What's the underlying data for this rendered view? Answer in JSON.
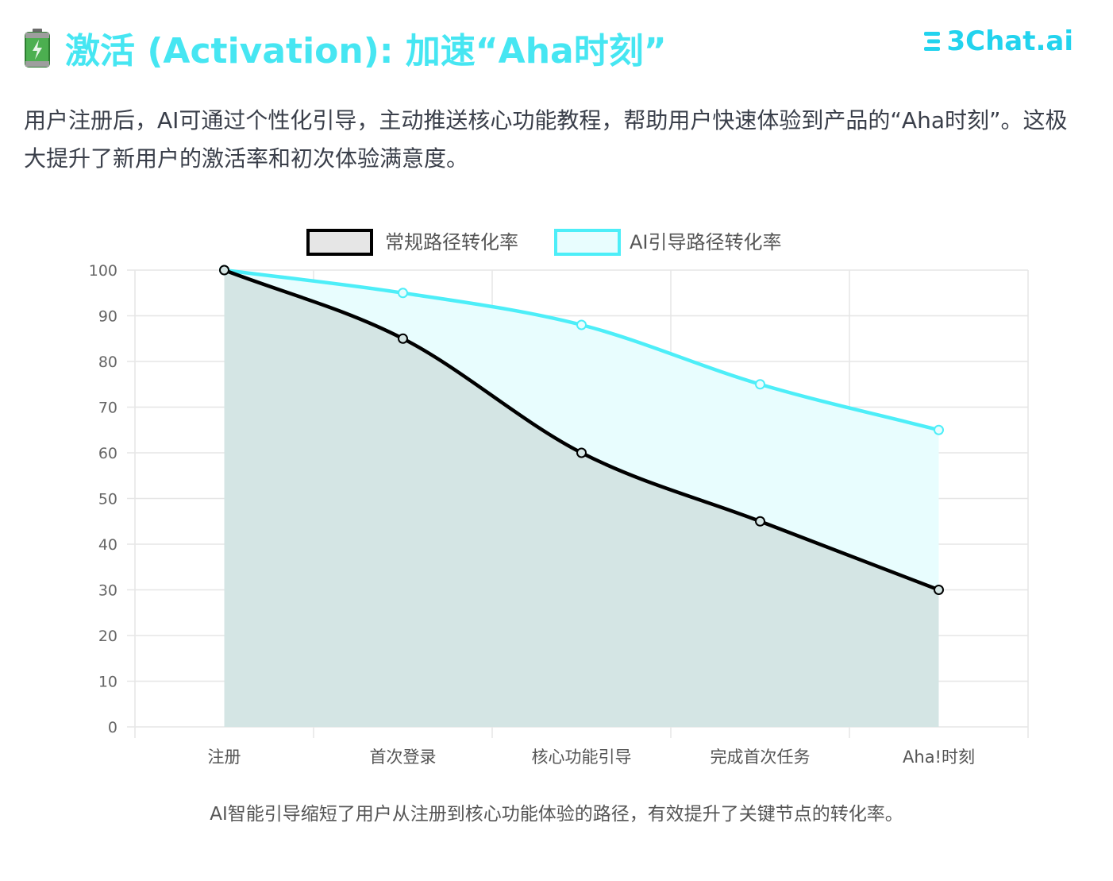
{
  "header": {
    "title": "激活 (Activation): 加速“Aha时刻”",
    "icon": "battery-icon",
    "brand": "3Chat.ai",
    "brand_color": "#22d3ee",
    "title_color": "#46e6f2"
  },
  "description": "用户注册后，AI可通过个性化引导，主动推送核心功能教程，帮助用户快速体验到产品的“Aha时刻”。这极大提升了新用户的激活率和初次体验满意度。",
  "chart_data": {
    "type": "line",
    "title": "",
    "xlabel": "",
    "ylabel": "",
    "categories": [
      "注册",
      "首次登录",
      "核心功能引导",
      "完成首次任务",
      "Aha!时刻"
    ],
    "ylim": [
      0,
      100
    ],
    "yticks": [
      0,
      10,
      20,
      30,
      40,
      50,
      60,
      70,
      80,
      90,
      100
    ],
    "grid": true,
    "legend": "top",
    "series": [
      {
        "name": "常规路径转化率",
        "values": [
          100,
          85,
          60,
          45,
          30
        ],
        "color": "#000000",
        "fill": "#d4e5e4"
      },
      {
        "name": "AI引导路径转化率",
        "values": [
          100,
          95,
          88,
          75,
          65
        ],
        "color": "#4deef8",
        "fill": "#e8fdfe"
      }
    ]
  },
  "caption": "AI智能引导缩短了用户从注册到核心功能体验的路径，有效提升了关键节点的转化率。"
}
